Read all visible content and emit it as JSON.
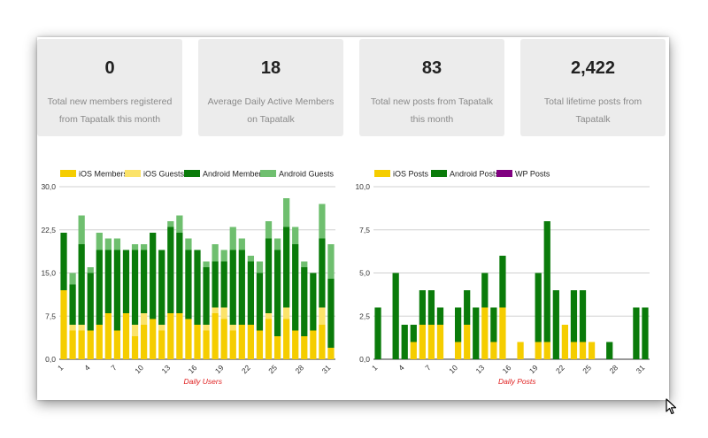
{
  "stats": [
    {
      "value": "0",
      "label": "Total new members registered from Tapatalk this month"
    },
    {
      "value": "18",
      "label": "Average Daily Active Members on Tapatalk"
    },
    {
      "value": "83",
      "label": "Total new posts from Tapatalk this month"
    },
    {
      "value": "2,422",
      "label": "Total lifetime posts from Tapatalk"
    }
  ],
  "colors": {
    "ios": "#f5cd00",
    "ios_guests": "#fbe36a",
    "android": "#0a7b0a",
    "android_guests": "#6fbf6f",
    "wp": "#800080",
    "xlabel": "#e02020"
  },
  "chart_data": [
    {
      "type": "bar",
      "stacked": true,
      "xlabel": "Daily Users",
      "ylim": [
        0,
        30
      ],
      "yticks": [
        "0,0",
        "7,5",
        "15,0",
        "22,5",
        "30,0"
      ],
      "grid": true,
      "legend_position": "top",
      "categories": [
        1,
        2,
        3,
        4,
        5,
        6,
        7,
        8,
        9,
        10,
        11,
        12,
        13,
        14,
        15,
        16,
        17,
        18,
        19,
        20,
        21,
        22,
        23,
        24,
        25,
        26,
        27,
        28,
        29,
        30,
        31
      ],
      "xtick_labels": [
        "1",
        "4",
        "7",
        "10",
        "13",
        "16",
        "19",
        "22",
        "25",
        "28",
        "31"
      ],
      "series": [
        {
          "name": "iOS Members",
          "color": "#f5cd00",
          "values": [
            12,
            5,
            5,
            5,
            6,
            8,
            5,
            8,
            4,
            6,
            7,
            5,
            8,
            8,
            7,
            6,
            5,
            8,
            7,
            5,
            6,
            6,
            5,
            7,
            4,
            7,
            5,
            4,
            5,
            6,
            2
          ]
        },
        {
          "name": "iOS Guests",
          "color": "#fbe36a",
          "values": [
            0,
            1,
            1,
            0,
            0,
            0,
            0,
            0,
            2,
            2,
            0,
            1,
            0,
            0,
            0,
            0,
            1,
            1,
            2,
            1,
            0,
            0,
            0,
            1,
            0,
            2,
            0,
            0,
            0,
            3,
            0
          ]
        },
        {
          "name": "Android Members",
          "color": "#0a7b0a",
          "values": [
            10,
            7,
            14,
            10,
            13,
            11,
            14,
            11,
            13,
            11,
            15,
            13,
            15,
            14,
            12,
            13,
            10,
            8,
            8,
            13,
            13,
            11,
            10,
            13,
            15,
            14,
            15,
            12,
            10,
            12,
            12
          ]
        },
        {
          "name": "Android Guests",
          "color": "#6fbf6f",
          "values": [
            0,
            2,
            5,
            1,
            3,
            2,
            2,
            0,
            1,
            1,
            0,
            0,
            1,
            3,
            2,
            0,
            1,
            3,
            2,
            4,
            2,
            1,
            2,
            3,
            2,
            5,
            3,
            1,
            0,
            6,
            6
          ]
        }
      ]
    },
    {
      "type": "bar",
      "stacked": true,
      "xlabel": "Daily Posts",
      "ylim": [
        0,
        10
      ],
      "yticks": [
        "0,0",
        "2,5",
        "5,0",
        "7,5",
        "10,0"
      ],
      "grid": true,
      "legend_position": "top",
      "categories": [
        1,
        2,
        3,
        4,
        5,
        6,
        7,
        8,
        9,
        10,
        11,
        12,
        13,
        14,
        15,
        16,
        17,
        18,
        19,
        20,
        21,
        22,
        23,
        24,
        25,
        26,
        27,
        28,
        29,
        30,
        31
      ],
      "xtick_labels": [
        "1",
        "4",
        "7",
        "10",
        "13",
        "16",
        "19",
        "22",
        "25",
        "28",
        "31"
      ],
      "series": [
        {
          "name": "iOS Posts",
          "color": "#f5cd00",
          "values": [
            0,
            0,
            0,
            0,
            1,
            2,
            2,
            2,
            0,
            1,
            2,
            0,
            3,
            1,
            3,
            0,
            1,
            0,
            1,
            1,
            0,
            2,
            1,
            1,
            1,
            0,
            0,
            0,
            0,
            0,
            0
          ]
        },
        {
          "name": "Android Posts",
          "color": "#0a7b0a",
          "values": [
            3,
            0,
            5,
            2,
            1,
            2,
            2,
            1,
            0,
            2,
            2,
            3,
            2,
            2,
            3,
            0,
            0,
            0,
            4,
            7,
            4,
            0,
            3,
            3,
            0,
            0,
            1,
            0,
            0,
            3,
            3
          ]
        },
        {
          "name": "WP Posts",
          "color": "#800080",
          "values": [
            0,
            0,
            0,
            0,
            0,
            0,
            0,
            0,
            0,
            0,
            0,
            0,
            0,
            0,
            0,
            0,
            0,
            0,
            0,
            0,
            0,
            0,
            0,
            0,
            0,
            0,
            0,
            0,
            0,
            0,
            0
          ]
        }
      ]
    }
  ]
}
